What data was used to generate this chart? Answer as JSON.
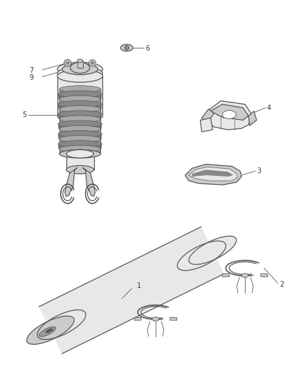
{
  "background_color": "#ffffff",
  "fig_width": 4.38,
  "fig_height": 5.33,
  "dpi": 100,
  "line_color": "#555555",
  "text_color": "#333333",
  "fill_light": "#e8e8e8",
  "fill_mid": "#cccccc",
  "fill_dark": "#999999",
  "lw_main": 0.9,
  "lw_thin": 0.5,
  "font_size": 7
}
